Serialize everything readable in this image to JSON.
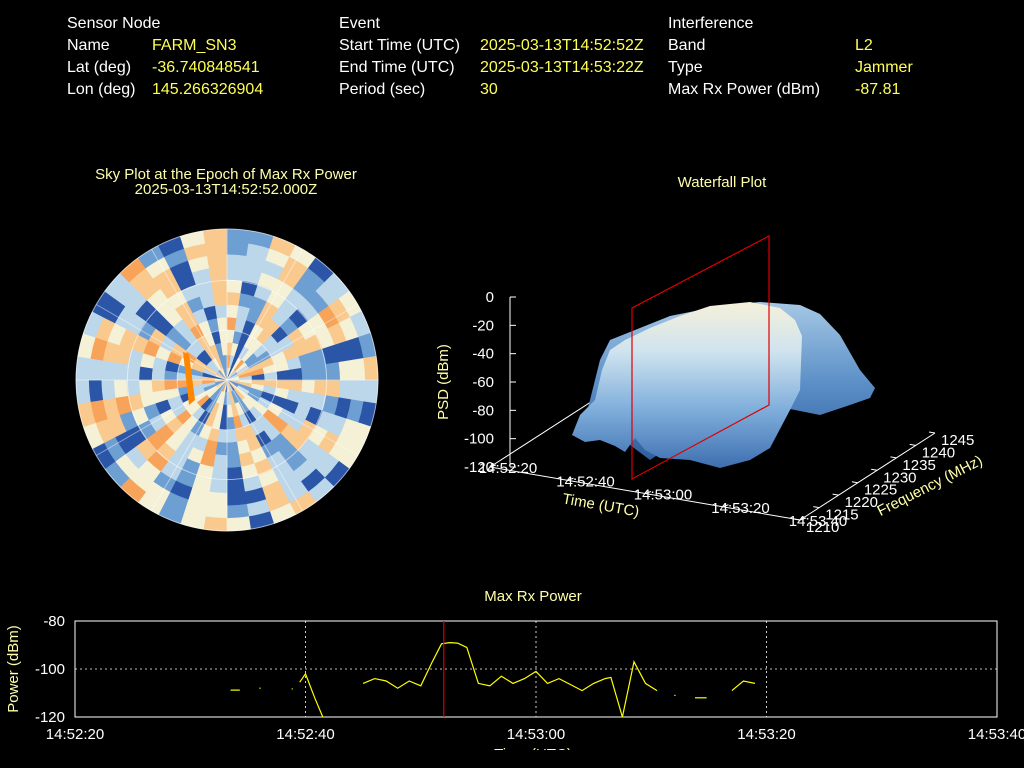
{
  "info": {
    "sensor": {
      "header": "Sensor Node",
      "rows": [
        {
          "label": "Name",
          "value": "FARM_SN3"
        },
        {
          "label": "Lat (deg)",
          "value": "-36.740848541"
        },
        {
          "label": "Lon (deg)",
          "value": "145.266326904"
        }
      ]
    },
    "event": {
      "header": "Event",
      "rows": [
        {
          "label": "Start Time (UTC)",
          "value": "2025-03-13T14:52:52Z"
        },
        {
          "label": "End Time (UTC)",
          "value": "2025-03-13T14:53:22Z"
        },
        {
          "label": "Period (sec)",
          "value": "30"
        }
      ]
    },
    "interference": {
      "header": "Interference",
      "rows": [
        {
          "label": "Band",
          "value": "L2"
        },
        {
          "label": "Type",
          "value": "Jammer"
        },
        {
          "label": "Max Rx Power (dBm)",
          "value": "-87.81"
        }
      ]
    }
  },
  "colors": {
    "text": "#ffffff",
    "value": "#ffff55",
    "title": "#ffffaa",
    "line": "#ffff00",
    "marker": "#dd0000",
    "warm": "#f7a35a",
    "cold": "#3a6ab5",
    "hot_spot": "#ff8800"
  },
  "chart_data": [
    {
      "type": "heatmap",
      "title": "Sky Plot at the Epoch of Max Rx Power",
      "subtitle": "2025-03-13T14:52:52.000Z",
      "projection": "polar",
      "colormap": [
        "#2b56a8",
        "#6e9fd2",
        "#bcd6ea",
        "#f4f1d6",
        "#f9c98e",
        "#f7a35a"
      ],
      "hot_spot_color": "#ff8800",
      "grid": true
    },
    {
      "type": "area",
      "title": "Waterfall Plot",
      "projection": "3d",
      "xlabel": "Time (UTC)",
      "ylabel": "Frequency (MHz)",
      "zlabel": "PSD (dBm)",
      "x_ticks": [
        "14:52:20",
        "14:52:40",
        "14:53:00",
        "14:53:20",
        "14:53:40"
      ],
      "y_ticks": [
        "1210",
        "1215",
        "1220",
        "1225",
        "1230",
        "1235",
        "1240",
        "1245"
      ],
      "z_ticks": [
        "0",
        "-20",
        "-40",
        "-60",
        "-80",
        "-100",
        "-120"
      ],
      "zlim": [
        -120,
        0
      ],
      "ylim": [
        1210,
        1245
      ],
      "plateau_psd_dbm": -30,
      "edge_psd_dbm": -95,
      "marker_time": "14:52:52",
      "marker_color": "#dd0000"
    },
    {
      "type": "line",
      "title": "Max Rx Power",
      "xlabel": "Time (UTC)",
      "ylabel": "Power (dBm)",
      "x_ticks": [
        "14:52:20",
        "14:52:40",
        "14:53:00",
        "14:53:20",
        "14:53:40"
      ],
      "y_ticks": [
        "-80",
        "-100",
        "-120"
      ],
      "xlim_seconds": [
        0,
        80
      ],
      "ylim": [
        -120,
        -80
      ],
      "grid": true,
      "marker_time_seconds": 32,
      "marker_color": "#dd0000",
      "series": [
        {
          "color": "#ffff00",
          "segments": [
            [
              [
                13.5,
                -108.8
              ],
              [
                14.3,
                -108.8
              ]
            ],
            [
              [
                16.0,
                -108.0
              ],
              [
                16.1,
                -108.0
              ]
            ],
            [
              [
                18.8,
                -108.3
              ],
              [
                18.9,
                -108.3
              ]
            ],
            [
              [
                19.5,
                -105.5
              ],
              [
                20.0,
                -102.0
              ],
              [
                20.8,
                -112.0
              ],
              [
                21.5,
                -120.0
              ]
            ],
            [
              [
                25.0,
                -106.0
              ],
              [
                26.0,
                -104.0
              ],
              [
                27.0,
                -105.0
              ],
              [
                28.0,
                -108.0
              ],
              [
                29.0,
                -105.0
              ],
              [
                30.0,
                -107.0
              ],
              [
                31.0,
                -97.0
              ],
              [
                31.8,
                -89.5
              ],
              [
                32.5,
                -89.0
              ],
              [
                33.2,
                -89.2
              ],
              [
                34.0,
                -91.0
              ],
              [
                35.0,
                -106.0
              ],
              [
                36.0,
                -107.0
              ],
              [
                37.0,
                -103.0
              ],
              [
                38.0,
                -106.0
              ],
              [
                39.0,
                -104.0
              ],
              [
                40.0,
                -101.0
              ],
              [
                41.0,
                -106.0
              ],
              [
                42.0,
                -104.0
              ],
              [
                43.0,
                -106.5
              ],
              [
                44.0,
                -109.0
              ],
              [
                45.0,
                -106.0
              ],
              [
                46.0,
                -104.0
              ],
              [
                46.5,
                -103.5
              ],
              [
                47.5,
                -120.0
              ],
              [
                48.5,
                -97.0
              ],
              [
                49.5,
                -106.0
              ],
              [
                50.5,
                -109.0
              ]
            ],
            [
              [
                52.0,
                -111.0
              ],
              [
                52.1,
                -111.0
              ]
            ],
            [
              [
                53.8,
                -112.0
              ],
              [
                54.8,
                -112.0
              ]
            ],
            [
              [
                57.0,
                -109.0
              ],
              [
                58.0,
                -105.0
              ],
              [
                59.0,
                -106.0
              ]
            ]
          ]
        }
      ]
    }
  ]
}
